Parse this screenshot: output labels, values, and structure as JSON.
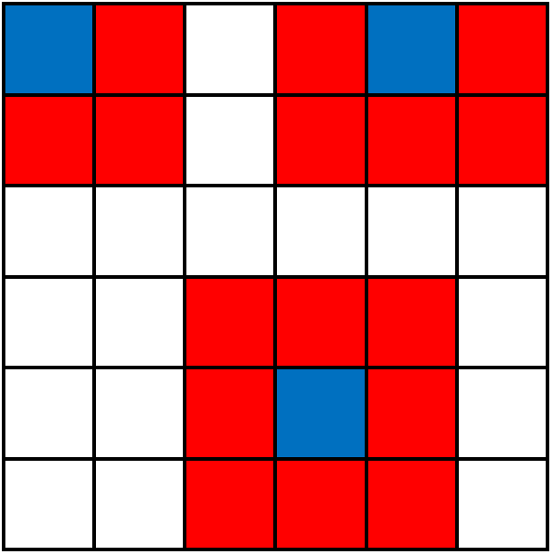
{
  "colors": {
    "white": "#ffffff",
    "red": "#ff0000",
    "blue": "#0070c0",
    "grid_line": "#000000"
  },
  "board": {
    "rows": 6,
    "cols": 6,
    "cells": [
      [
        "blue",
        "red",
        "white",
        "red",
        "blue",
        "red"
      ],
      [
        "red",
        "red",
        "white",
        "red",
        "red",
        "red"
      ],
      [
        "white",
        "white",
        "white",
        "white",
        "white",
        "white"
      ],
      [
        "white",
        "white",
        "red",
        "red",
        "red",
        "white"
      ],
      [
        "white",
        "white",
        "red",
        "blue",
        "red",
        "white"
      ],
      [
        "white",
        "white",
        "red",
        "red",
        "red",
        "white"
      ]
    ]
  }
}
